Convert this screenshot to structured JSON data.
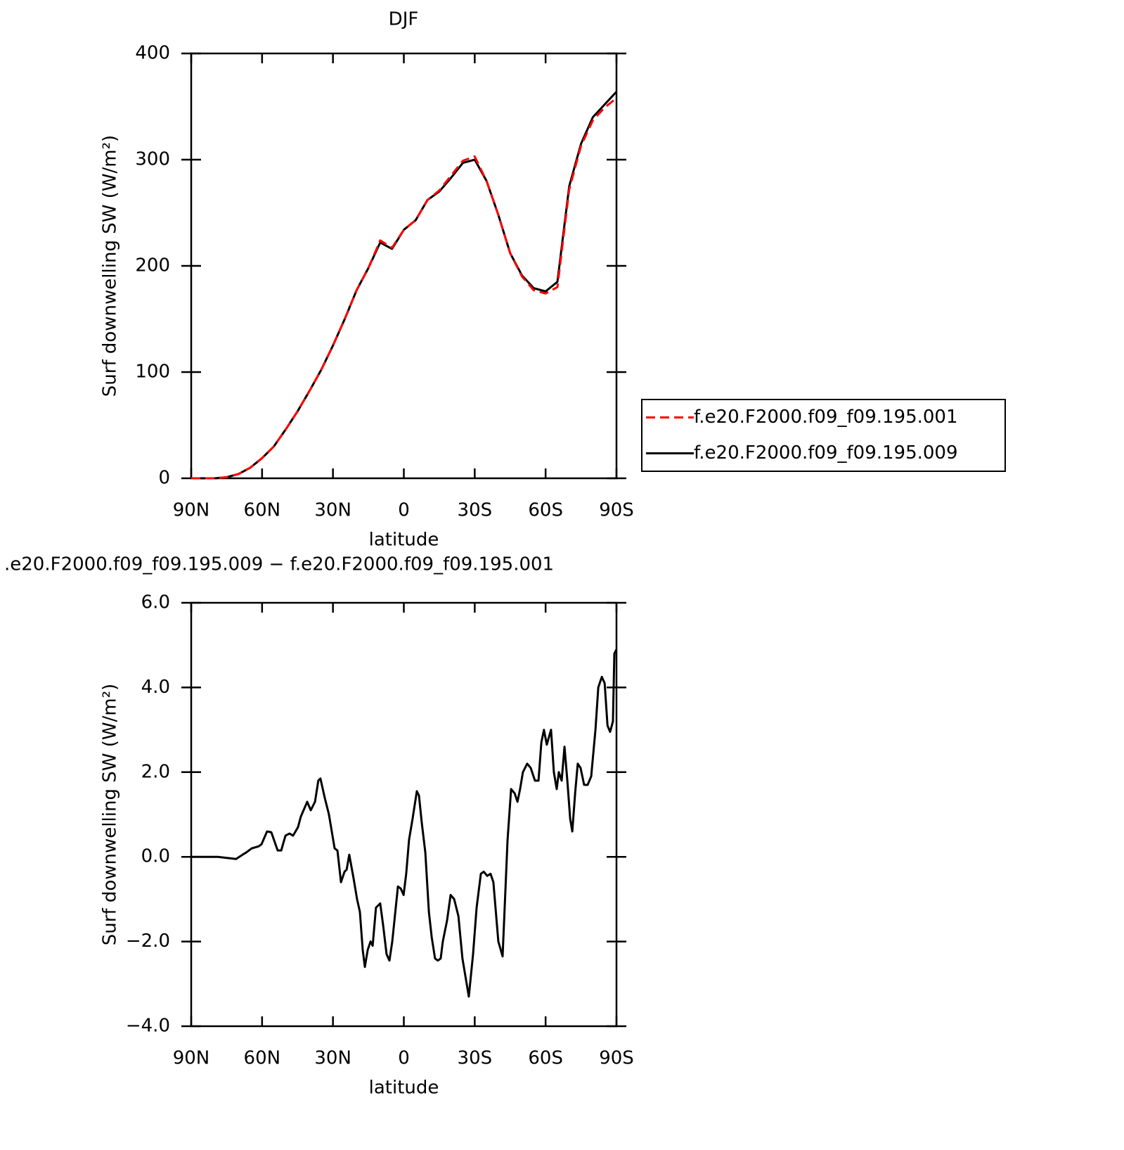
{
  "chart_data": [
    {
      "type": "line",
      "title": "DJF",
      "xlabel": "latitude",
      "ylabel": "Surf downwelling SW (W/m²)",
      "x": [
        90,
        85,
        80,
        75,
        70,
        65,
        60,
        55,
        50,
        45,
        40,
        35,
        30,
        25,
        20,
        15,
        10,
        5,
        0,
        -5,
        -10,
        -15,
        -20,
        -25,
        -30,
        -35,
        -40,
        -45,
        -50,
        -55,
        -60,
        -65,
        -70,
        -75,
        -80,
        -85,
        -90
      ],
      "series": [
        {
          "name": "f.e20.F2000.f09_f09.195.001",
          "color": "#ff0000",
          "dash": true,
          "values": [
            0,
            0,
            0,
            1,
            4,
            10,
            19,
            30,
            46,
            63,
            82,
            102,
            125,
            150,
            177,
            198,
            224,
            217,
            234,
            243,
            262,
            271,
            285,
            299,
            303,
            280,
            248,
            212,
            190,
            177,
            174,
            180,
            272,
            313,
            337,
            349,
            358
          ]
        },
        {
          "name": "f.e20.F2000.f09_f09.195.009",
          "color": "#000000",
          "dash": false,
          "values": [
            0,
            0,
            0,
            1,
            4,
            10,
            19,
            30,
            46,
            63,
            82,
            102,
            125,
            150,
            177,
            198,
            222,
            216,
            234,
            243,
            262,
            270,
            283,
            297,
            300,
            280,
            248,
            212,
            191,
            179,
            176,
            185,
            275,
            315,
            340,
            352,
            364
          ]
        }
      ],
      "xlim": [
        90,
        -90
      ],
      "xticks": [
        {
          "value": 90,
          "label": "90N"
        },
        {
          "value": 60,
          "label": "60N"
        },
        {
          "value": 30,
          "label": "30N"
        },
        0,
        {
          "value": -30,
          "label": "30S"
        },
        {
          "value": -60,
          "label": "60S"
        },
        {
          "value": -90,
          "label": "90S"
        }
      ],
      "ylim": [
        0,
        400
      ],
      "yticks": [
        0,
        100,
        200,
        300,
        400
      ],
      "legend": "outside-right"
    },
    {
      "type": "line",
      "title": ".e20.F2000.f09_f09.195.009 − f.e20.F2000.f09_f09.195.001",
      "xlabel": "latitude",
      "ylabel": "Surf downwelling SW (W/m²)",
      "color": "#000000",
      "x": [
        90,
        78.7,
        71,
        68.3,
        66.8,
        64.4,
        61.4,
        60.2,
        57.9,
        56.1,
        53.4,
        51.9,
        50.1,
        48.4,
        46.9,
        44.8,
        43.6,
        40.9,
        39.4,
        37.6,
        36.2,
        35.3,
        33.5,
        31.7,
        30.5,
        29.3,
        28.1,
        26.6,
        25.1,
        24.2,
        23.1,
        21.3,
        19.8,
        18.6,
        17.4,
        16.5,
        15.3,
        14.1,
        13.2,
        11.8,
        10.0,
        8.8,
        7.3,
        6.1,
        4.9,
        2.5,
        1.3,
        0.1,
        -1.0,
        -2.2,
        -3.7,
        -5.5,
        -6.4,
        -7.6,
        -9.1,
        -10.6,
        -11.8,
        -13.2,
        -14.4,
        -15.6,
        -16.5,
        -18.3,
        -19.8,
        -21.3,
        -23.1,
        -24.8,
        -26.6,
        -27.5,
        -29.3,
        -30.8,
        -32.6,
        -33.8,
        -35.3,
        -36.7,
        -37.9,
        -40.0,
        -41.8,
        -43.9,
        -45.4,
        -46.9,
        -48.1,
        -49.2,
        -50.4,
        -52.2,
        -53.7,
        -55.5,
        -57.0,
        -58.2,
        -59.3,
        -60.5,
        -62.3,
        -63.5,
        -64.7,
        -65.6,
        -66.8,
        -68.0,
        -69.2,
        -70.4,
        -71.3,
        -72.5,
        -73.6,
        -74.8,
        -76.3,
        -77.8,
        -79.3,
        -81.1,
        -82.3,
        -83.8,
        -85.0,
        -86.2,
        -87.3,
        -88.5,
        -89.1,
        -90
      ],
      "values": [
        0,
        0,
        -0.05,
        0.05,
        0.1,
        0.2,
        0.25,
        0.3,
        0.6,
        0.58,
        0.15,
        0.15,
        0.5,
        0.55,
        0.5,
        0.7,
        0.95,
        1.3,
        1.1,
        1.3,
        1.8,
        1.85,
        1.4,
        1.0,
        0.6,
        0.2,
        0.15,
        -0.6,
        -0.35,
        -0.3,
        0.05,
        -0.5,
        -1.0,
        -1.3,
        -2.2,
        -2.6,
        -2.2,
        -2.0,
        -2.1,
        -1.2,
        -1.1,
        -1.6,
        -2.3,
        -2.45,
        -2.0,
        -0.7,
        -0.75,
        -0.9,
        -0.4,
        0.4,
        0.9,
        1.55,
        1.45,
        0.8,
        0.1,
        -1.3,
        -1.9,
        -2.4,
        -2.45,
        -2.4,
        -2.0,
        -1.5,
        -0.9,
        -1.0,
        -1.4,
        -2.4,
        -3.0,
        -3.3,
        -2.3,
        -1.2,
        -0.4,
        -0.35,
        -0.45,
        -0.4,
        -0.6,
        -2.0,
        -2.35,
        0.4,
        1.6,
        1.5,
        1.3,
        1.6,
        2.0,
        2.2,
        2.1,
        1.8,
        1.8,
        2.7,
        3.0,
        2.65,
        3.0,
        2.0,
        1.6,
        2.0,
        1.8,
        2.6,
        1.8,
        0.9,
        0.6,
        1.5,
        2.2,
        2.1,
        1.7,
        1.7,
        1.9,
        3.0,
        4.0,
        4.25,
        4.1,
        3.1,
        2.95,
        3.2,
        4.8,
        4.9
      ],
      "xlim": [
        90,
        -90
      ],
      "xticks": [
        {
          "value": 90,
          "label": "90N"
        },
        {
          "value": 60,
          "label": "60N"
        },
        {
          "value": 30,
          "label": "30N"
        },
        0,
        {
          "value": -30,
          "label": "30S"
        },
        {
          "value": -60,
          "label": "60S"
        },
        {
          "value": -90,
          "label": "90S"
        }
      ],
      "ylim": [
        -4,
        6
      ],
      "yticks": [
        {
          "value": -4,
          "label": "−4.0"
        },
        {
          "value": -2,
          "label": "−2.0"
        },
        {
          "value": 0,
          "label": "0.0"
        },
        {
          "value": 2,
          "label": "2.0"
        },
        {
          "value": 4,
          "label": "4.0"
        },
        {
          "value": 6,
          "label": "6.0"
        }
      ]
    }
  ]
}
